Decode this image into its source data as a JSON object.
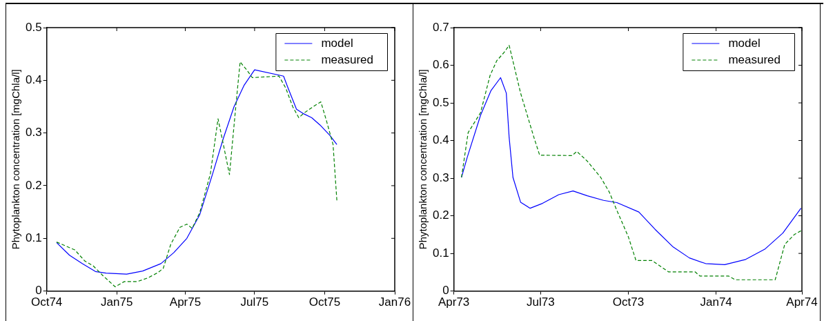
{
  "chart_data": [
    {
      "type": "line",
      "ylabel": "Phytoplankton concentration [mgChla/l]",
      "legend": "top right",
      "grid": false,
      "xlim": [
        "1974-10-01",
        "1976-01-01"
      ],
      "xticks": [
        {
          "value": "1974-10-01",
          "label": "Oct74"
        },
        {
          "value": "1975-01-01",
          "label": "Jan75"
        },
        {
          "value": "1975-04-01",
          "label": "Apr75"
        },
        {
          "value": "1975-07-01",
          "label": "Jul75"
        },
        {
          "value": "1975-10-01",
          "label": "Oct75"
        },
        {
          "value": "1976-01-01",
          "label": "Jan76"
        }
      ],
      "ylim": [
        0,
        0.5
      ],
      "yticks": [
        0,
        0.1,
        0.2,
        0.3,
        0.4,
        0.5
      ],
      "series": [
        {
          "name": "model",
          "color": "#0000ff",
          "line_style": "solid",
          "x": [
            "1974-10-14",
            "1974-10-31",
            "1974-11-17",
            "1974-12-04",
            "1974-12-18",
            "1975-01-14",
            "1975-02-04",
            "1975-02-28",
            "1975-03-17",
            "1975-04-03",
            "1975-04-20",
            "1975-05-07",
            "1975-05-21",
            "1975-06-04",
            "1975-06-17",
            "1975-07-01",
            "1975-08-08",
            "1975-08-14",
            "1975-08-25",
            "1975-09-04",
            "1975-09-14",
            "1975-09-25",
            "1975-10-08",
            "1975-10-17"
          ],
          "values": [
            0.092,
            0.068,
            0.052,
            0.037,
            0.034,
            0.032,
            0.038,
            0.052,
            0.073,
            0.1,
            0.145,
            0.223,
            0.29,
            0.35,
            0.39,
            0.42,
            0.408,
            0.385,
            0.345,
            0.336,
            0.329,
            0.315,
            0.295,
            0.278
          ]
        },
        {
          "name": "measured",
          "color": "#008000",
          "line_style": "dashed",
          "x": [
            "1974-10-14",
            "1974-11-07",
            "1974-11-20",
            "1974-12-01",
            "1974-12-14",
            "1974-12-30",
            "1975-01-11",
            "1975-01-28",
            "1975-02-11",
            "1975-02-24",
            "1975-03-03",
            "1975-03-13",
            "1975-03-25",
            "1975-04-03",
            "1975-04-10",
            "1975-04-20",
            "1975-05-04",
            "1975-05-14",
            "1975-05-21",
            "1975-05-29",
            "1975-06-07",
            "1975-06-12",
            "1975-06-21",
            "1975-06-28",
            "1975-08-02",
            "1975-08-11",
            "1975-08-20",
            "1975-08-28",
            "1975-09-04",
            "1975-09-18",
            "1975-09-26",
            "1975-10-03",
            "1975-10-12",
            "1975-10-17"
          ],
          "values": [
            0.093,
            0.078,
            0.057,
            0.048,
            0.029,
            0.008,
            0.018,
            0.018,
            0.025,
            0.035,
            0.043,
            0.089,
            0.121,
            0.127,
            0.119,
            0.149,
            0.223,
            0.327,
            0.278,
            0.221,
            0.361,
            0.435,
            0.419,
            0.405,
            0.408,
            0.385,
            0.35,
            0.329,
            0.338,
            0.352,
            0.359,
            0.325,
            0.278,
            0.172
          ]
        }
      ]
    },
    {
      "type": "line",
      "ylabel": "Phytoplankton concentration [mgChla/l]",
      "legend": "top right",
      "grid": false,
      "xlim": [
        "1973-04-01",
        "1974-04-01"
      ],
      "xticks": [
        {
          "value": "1973-04-01",
          "label": "Apr73"
        },
        {
          "value": "1973-07-01",
          "label": "Jul73"
        },
        {
          "value": "1973-10-01",
          "label": "Oct73"
        },
        {
          "value": "1974-01-01",
          "label": "Jan74"
        },
        {
          "value": "1974-04-01",
          "label": "Apr74"
        }
      ],
      "ylim": [
        0,
        0.7
      ],
      "yticks": [
        0,
        0.1,
        0.2,
        0.3,
        0.4,
        0.5,
        0.6,
        0.7
      ],
      "series": [
        {
          "name": "model",
          "color": "#0000ff",
          "line_style": "solid",
          "x": [
            "1973-04-09",
            "1973-04-15",
            "1973-04-29",
            "1973-05-10",
            "1973-05-20",
            "1973-05-26",
            "1973-05-29",
            "1973-06-02",
            "1973-06-10",
            "1973-06-20",
            "1973-07-03",
            "1973-07-20",
            "1973-08-04",
            "1973-08-19",
            "1973-09-05",
            "1973-09-19",
            "1973-10-12",
            "1973-10-29",
            "1973-11-17",
            "1973-12-04",
            "1973-12-21",
            "1974-01-10",
            "1974-02-01",
            "1974-02-21",
            "1974-03-12",
            "1974-03-31"
          ],
          "values": [
            0.302,
            0.355,
            0.467,
            0.533,
            0.567,
            0.526,
            0.408,
            0.302,
            0.236,
            0.22,
            0.233,
            0.256,
            0.266,
            0.253,
            0.241,
            0.235,
            0.21,
            0.164,
            0.117,
            0.088,
            0.073,
            0.07,
            0.084,
            0.111,
            0.154,
            0.22
          ]
        },
        {
          "name": "measured",
          "color": "#008000",
          "line_style": "dashed",
          "x": [
            "1973-04-09",
            "1973-04-16",
            "1973-04-29",
            "1973-05-09",
            "1973-05-16",
            "1973-05-24",
            "1973-05-29",
            "1973-06-10",
            "1973-06-24",
            "1973-06-30",
            "1973-08-03",
            "1973-08-08",
            "1973-08-19",
            "1973-09-02",
            "1973-09-11",
            "1973-09-18",
            "1973-10-01",
            "1973-10-09",
            "1973-10-26",
            "1973-11-12",
            "1973-12-10",
            "1973-12-15",
            "1974-01-14",
            "1974-01-21",
            "1974-03-04",
            "1974-03-14",
            "1974-03-24",
            "1974-03-31"
          ],
          "values": [
            0.302,
            0.421,
            0.474,
            0.573,
            0.612,
            0.635,
            0.653,
            0.526,
            0.408,
            0.361,
            0.36,
            0.371,
            0.345,
            0.302,
            0.263,
            0.22,
            0.144,
            0.081,
            0.081,
            0.051,
            0.051,
            0.04,
            0.04,
            0.03,
            0.03,
            0.124,
            0.15,
            0.16
          ]
        }
      ]
    }
  ]
}
